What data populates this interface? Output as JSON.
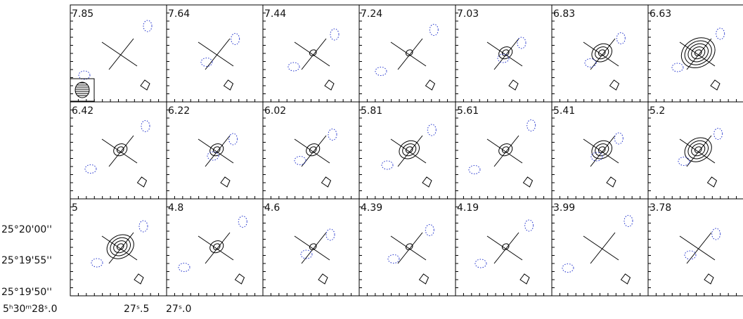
{
  "panels": [
    "7.85",
    "7.64",
    "7.44",
    "7.24",
    "7.03",
    "6.83",
    "6.63",
    "6.42",
    "6.22",
    "6.02",
    "5.81",
    "5.61",
    "5.41",
    "5.2",
    "5",
    "4.8",
    "4.6",
    "4.39",
    "4.19",
    "3.99",
    "3.78"
  ],
  "y_axis_labels": [
    "25°20'00''",
    "25°19'55''",
    "25°19'50''"
  ],
  "x_axis_labels": [
    "5ʰ30ᵐ28ˢ.0",
    "27ˢ.5",
    "27ˢ.0"
  ]
}
